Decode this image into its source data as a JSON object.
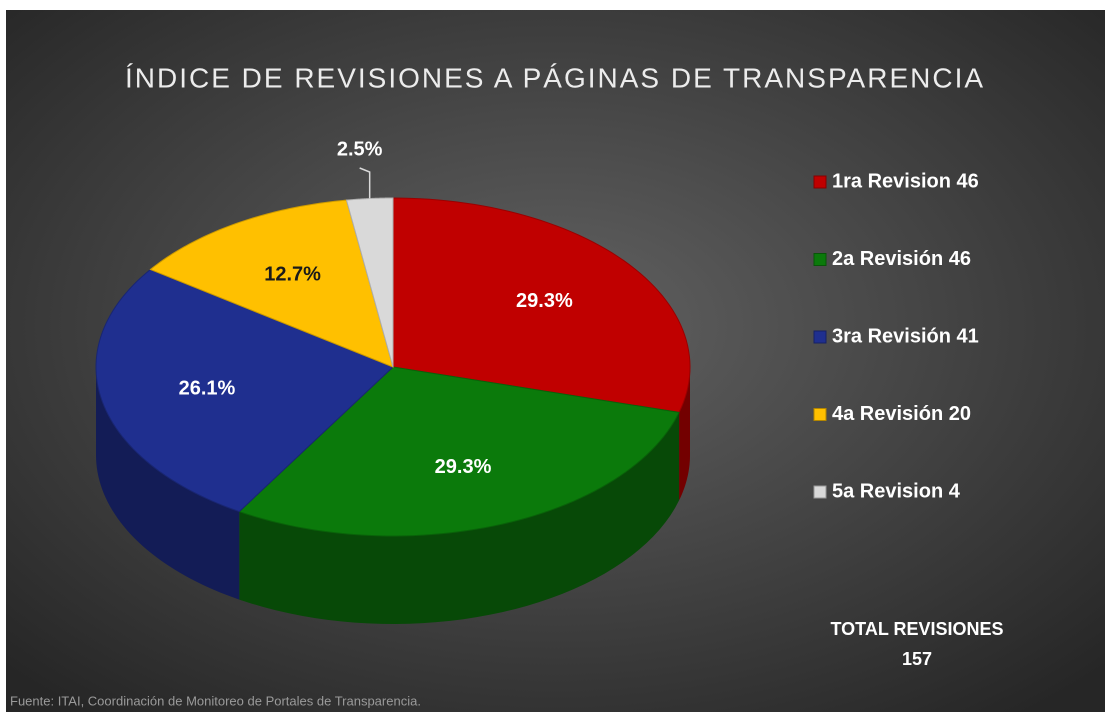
{
  "chart_data": {
    "type": "pie",
    "title": "ÍNDICE DE REVISIONES A PÁGINAS DE TRANSPARENCIA",
    "categories": [
      "1ra Revision 46",
      "2a Revisión 46",
      "3ra Revisión 41",
      "4a Revisión 20",
      "5a Revision 4"
    ],
    "values": [
      29.3,
      29.3,
      26.1,
      12.7,
      2.5
    ],
    "value_labels": [
      "29.3%",
      "29.3%",
      "26.1%",
      "12.7%",
      "2.5%"
    ],
    "colors": [
      "#c00000",
      "#0b7a0b",
      "#1f2f8f",
      "#ffc000",
      "#d9d9d9"
    ],
    "total_label": "TOTAL REVISIONES",
    "total_value": 157,
    "source": "Fuente: ITAI, Coordinación de Monitoreo de Portales de Transparencia."
  }
}
